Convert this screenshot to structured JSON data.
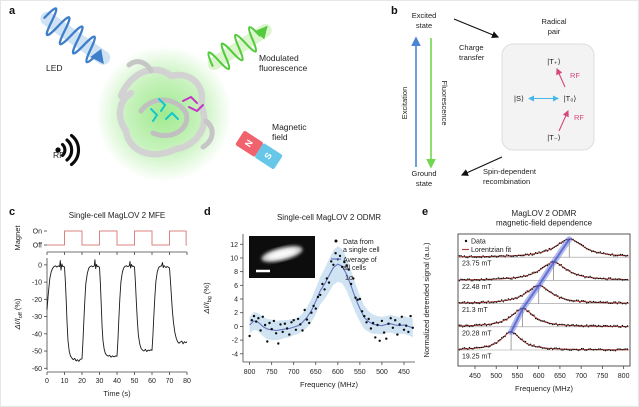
{
  "figure": {
    "panel_letters": {
      "a": "a",
      "b": "b",
      "c": "c",
      "d": "d",
      "e": "e"
    },
    "panel_a": {
      "led": "LED",
      "modulated_line1": "Modulated",
      "modulated_line2": "fluorescence",
      "rf": "RF",
      "magnetic_line1": "Magnetic",
      "magnetic_line2": "field",
      "magnet_n": "N",
      "magnet_s": "S"
    },
    "panel_b": {
      "excited_line1": "Excited",
      "excited_line2": "state",
      "ground_line1": "Ground",
      "ground_line2": "state",
      "excitation": "Excitation",
      "fluorescence": "Fluorescence",
      "charge_line1": "Charge",
      "charge_line2": "transfer",
      "radical_line1": "Radical",
      "radical_line2": "pair",
      "t_plus": "|T₊⟩",
      "s": "|S⟩",
      "t_zero": "|T₀⟩",
      "t_minus": "|T₋⟩",
      "rf_upper": "RF",
      "rf_lower": "RF",
      "spin_line1": "Spin-dependent",
      "spin_line2": "recombination"
    }
  },
  "colors": {
    "magnet_wave": "#d9837f",
    "trace": "#1a1a1a",
    "average_line": "#6674c2",
    "sigma_band": "#cfe3f2",
    "lorentzian_fit": "#b5413c",
    "trend_band": "#6b79d9",
    "trend_core": "#4050c8",
    "guide": "#8a8a8a",
    "axis": "#444444",
    "tick_text": "#222222",
    "magnet_n": "#f0636e",
    "magnet_s": "#66c7e8",
    "led_wave": "#3f7fca",
    "led_ribbon": "#c3dcf2",
    "fluor_wave": "#54cb3e",
    "fluor_ribbon": "#d4f2c2",
    "rf_pink": "#d6477e",
    "st_arrow": "#45b8e8",
    "excitation_arrow": "#4a86d8",
    "fluorescence_arrow": "#6fd84e",
    "glow": "#52d832",
    "box_fill": "#f3f3f3",
    "box_stroke": "#dddddd"
  },
  "chart_data": [
    {
      "panel": "c",
      "type": "line",
      "title": "Single-cell MagLOV 2 MFE",
      "xlabel": "Time (s)",
      "xlim": [
        0,
        80
      ],
      "xticks": [
        0,
        10,
        20,
        30,
        40,
        50,
        60,
        70,
        80
      ],
      "magnet": {
        "label": "Magnet",
        "on_label": "On",
        "off_label": "Off",
        "on_intervals": [
          [
            10,
            20
          ],
          [
            30,
            40
          ],
          [
            50,
            60
          ],
          [
            70,
            79.5
          ]
        ]
      },
      "ylabel": {
        "pre": "ΔI/I",
        "sub": "off",
        "post": " (%)"
      },
      "ylim": [
        -61,
        4
      ],
      "yticks": [
        0,
        -10,
        -20,
        -30,
        -40,
        -50,
        -60
      ],
      "points": [
        [
          0,
          -26
        ],
        [
          0.8,
          -16
        ],
        [
          1.6,
          -8
        ],
        [
          2.4,
          -4
        ],
        [
          3.2,
          -2
        ],
        [
          4,
          -1
        ],
        [
          4.8,
          -0.5
        ],
        [
          5.6,
          -1.2
        ],
        [
          6.4,
          -0.6
        ],
        [
          7.2,
          -1
        ],
        [
          7.6,
          2.5
        ],
        [
          8,
          -3
        ],
        [
          8.5,
          0.5
        ],
        [
          9,
          -1
        ],
        [
          9.5,
          -0.8
        ],
        [
          10,
          -1.2
        ],
        [
          10.5,
          -10
        ],
        [
          11,
          -22
        ],
        [
          11.5,
          -34
        ],
        [
          12,
          -44
        ],
        [
          12.7,
          -50
        ],
        [
          13.4,
          -53
        ],
        [
          14.2,
          -54
        ],
        [
          15,
          -55
        ],
        [
          15.8,
          -54.2
        ],
        [
          16.6,
          -55.8
        ],
        [
          17.4,
          -55
        ],
        [
          18.2,
          -56
        ],
        [
          19,
          -54.8
        ],
        [
          20,
          -54.5
        ],
        [
          20.5,
          -45
        ],
        [
          21,
          -33
        ],
        [
          21.6,
          -21
        ],
        [
          22.2,
          -11
        ],
        [
          23,
          -5
        ],
        [
          23.8,
          -2
        ],
        [
          24.6,
          -1
        ],
        [
          25.4,
          -0.6
        ],
        [
          26.2,
          -1.1
        ],
        [
          27,
          -0.6
        ],
        [
          27.4,
          3
        ],
        [
          27.8,
          -2.2
        ],
        [
          28.3,
          0.3
        ],
        [
          28.8,
          -1
        ],
        [
          29.4,
          -0.8
        ],
        [
          30,
          -1.4
        ],
        [
          30.5,
          -11
        ],
        [
          31,
          -24
        ],
        [
          31.5,
          -36
        ],
        [
          32,
          -44
        ],
        [
          32.7,
          -49
        ],
        [
          33.4,
          -51.5
        ],
        [
          34.2,
          -52.5
        ],
        [
          35,
          -53
        ],
        [
          35.8,
          -52.4
        ],
        [
          36.6,
          -53.6
        ],
        [
          37.4,
          -52.8
        ],
        [
          38.2,
          -53.4
        ],
        [
          39,
          -52.9
        ],
        [
          40,
          -53
        ],
        [
          40.5,
          -44
        ],
        [
          41,
          -32
        ],
        [
          41.6,
          -20
        ],
        [
          42.2,
          -10
        ],
        [
          43,
          -4.5
        ],
        [
          43.8,
          -1.8
        ],
        [
          44.6,
          -0.8
        ],
        [
          45.4,
          -0.5
        ],
        [
          46.2,
          -1
        ],
        [
          47,
          -0.5
        ],
        [
          47.4,
          2
        ],
        [
          47.8,
          -1.8
        ],
        [
          48.3,
          0.2
        ],
        [
          48.8,
          -0.9
        ],
        [
          49.4,
          -0.7
        ],
        [
          50,
          -1.2
        ],
        [
          50.5,
          -10
        ],
        [
          51,
          -21
        ],
        [
          51.6,
          -32
        ],
        [
          52.2,
          -41
        ],
        [
          53,
          -46
        ],
        [
          53.8,
          -48.5
        ],
        [
          54.6,
          -49.5
        ],
        [
          55.4,
          -50
        ],
        [
          56.2,
          -49
        ],
        [
          57,
          -50.3
        ],
        [
          57.8,
          -49.4
        ],
        [
          58.6,
          -49.8
        ],
        [
          59.3,
          -49.2
        ],
        [
          60,
          -49.6
        ],
        [
          60.5,
          -41
        ],
        [
          61,
          -30
        ],
        [
          61.6,
          -19
        ],
        [
          62.2,
          -9.5
        ],
        [
          63,
          -4
        ],
        [
          63.8,
          -1.6
        ],
        [
          64.6,
          -0.9
        ],
        [
          65.4,
          -0.5
        ],
        [
          66,
          1.4
        ],
        [
          66.4,
          -1.6
        ],
        [
          66.9,
          -0.4
        ],
        [
          67.4,
          -1
        ],
        [
          68,
          -1.6
        ],
        [
          68.6,
          -1
        ],
        [
          69.3,
          -1.3
        ],
        [
          70,
          -1.8
        ],
        [
          70.5,
          -9
        ],
        [
          71,
          -17
        ],
        [
          71.6,
          -26
        ],
        [
          72.2,
          -33
        ],
        [
          73,
          -39
        ],
        [
          73.8,
          -42.5
        ],
        [
          74.6,
          -44.5
        ],
        [
          75.4,
          -45.5
        ],
        [
          76.2,
          -44.8
        ],
        [
          77,
          -44.2
        ],
        [
          77.8,
          -45.8
        ],
        [
          78.6,
          -44.6
        ],
        [
          79.3,
          -45.2
        ],
        [
          80,
          -44.6
        ]
      ]
    },
    {
      "panel": "d",
      "type": "scatter",
      "title": "Single-cell MagLOV 2 ODMR",
      "xlabel": "Frequency (MHz)",
      "x_reversed": true,
      "xlim": [
        815,
        425
      ],
      "xticks": [
        800,
        750,
        700,
        650,
        600,
        550,
        500,
        450
      ],
      "ylabel": {
        "pre": "ΔI/I",
        "sub": "bg",
        "post": " (%)"
      },
      "ylim": [
        -5.2,
        13.5
      ],
      "yticks": [
        -4,
        -2,
        0,
        2,
        4,
        6,
        8,
        10,
        12
      ],
      "legend": [
        {
          "marker": "dot",
          "label_line1": "Data from",
          "label_line2": "a single cell"
        },
        {
          "marker": "line",
          "label_line1": "Average of",
          "label_line2": "all cells"
        },
        {
          "marker": "band",
          "label_line1": "1σ",
          "label_line2": ""
        }
      ],
      "average_line": [
        [
          800,
          0.2
        ],
        [
          790,
          0.8
        ],
        [
          780,
          0.6
        ],
        [
          770,
          0.0
        ],
        [
          760,
          -0.4
        ],
        [
          750,
          -0.5
        ],
        [
          740,
          -0.6
        ],
        [
          730,
          -0.5
        ],
        [
          720,
          -0.4
        ],
        [
          710,
          -0.3
        ],
        [
          700,
          -0.1
        ],
        [
          690,
          0.1
        ],
        [
          680,
          0.6
        ],
        [
          670,
          1.3
        ],
        [
          660,
          2.3
        ],
        [
          650,
          3.7
        ],
        [
          640,
          5.2
        ],
        [
          630,
          6.2
        ],
        [
          620,
          7.4
        ],
        [
          610,
          8.6
        ],
        [
          600,
          9.1
        ],
        [
          590,
          8.8
        ],
        [
          580,
          7.6
        ],
        [
          570,
          5.9
        ],
        [
          560,
          4.1
        ],
        [
          550,
          2.6
        ],
        [
          540,
          1.3
        ],
        [
          530,
          0.7
        ],
        [
          520,
          0.3
        ],
        [
          510,
          0.2
        ],
        [
          500,
          0.1
        ],
        [
          490,
          0.3
        ],
        [
          480,
          0.4
        ],
        [
          470,
          0.2
        ],
        [
          460,
          0.1
        ],
        [
          450,
          0.2
        ],
        [
          440,
          0.0
        ],
        [
          430,
          -0.2
        ]
      ],
      "sigma": [
        1.2,
        1.3,
        1.3,
        1.4,
        1.5,
        1.5,
        1.4,
        1.4,
        1.3,
        1.3,
        1.2,
        1.2,
        1.3,
        1.5,
        1.7,
        1.9,
        2.0,
        2.2,
        2.4,
        2.5,
        2.6,
        2.5,
        2.4,
        2.3,
        2.1,
        1.9,
        1.7,
        1.5,
        1.4,
        1.3,
        1.3,
        1.2,
        1.3,
        1.3,
        1.2,
        1.3,
        1.3,
        1.4
      ],
      "scatter": [
        [
          800,
          -1.4
        ],
        [
          795,
          0.9
        ],
        [
          790,
          1.5
        ],
        [
          785,
          0.7
        ],
        [
          780,
          1.2
        ],
        [
          775,
          -0.6
        ],
        [
          770,
          1.4
        ],
        [
          765,
          0.2
        ],
        [
          760,
          -2.2
        ],
        [
          755,
          0.5
        ],
        [
          750,
          -0.4
        ],
        [
          745,
          0.8
        ],
        [
          740,
          -1.0
        ],
        [
          735,
          -2.5
        ],
        [
          730,
          0.3
        ],
        [
          725,
          -0.8
        ],
        [
          720,
          0.4
        ],
        [
          715,
          -0.3
        ],
        [
          710,
          -1.2
        ],
        [
          705,
          0.6
        ],
        [
          700,
          0.9
        ],
        [
          695,
          -0.5
        ],
        [
          690,
          1.1
        ],
        [
          685,
          0.3
        ],
        [
          680,
          -0.6
        ],
        [
          675,
          2.4
        ],
        [
          670,
          1.0
        ],
        [
          665,
          0.5
        ],
        [
          660,
          2.0
        ],
        [
          655,
          3.0
        ],
        [
          650,
          2.6
        ],
        [
          645,
          4.3
        ],
        [
          640,
          4.6
        ],
        [
          635,
          6.2
        ],
        [
          630,
          5.4
        ],
        [
          625,
          7.0
        ],
        [
          620,
          6.4
        ],
        [
          615,
          9.5
        ],
        [
          610,
          9.0
        ],
        [
          605,
          10.7
        ],
        [
          600,
          9.8
        ],
        [
          595,
          10.3
        ],
        [
          590,
          8.7
        ],
        [
          585,
          9.4
        ],
        [
          580,
          8.9
        ],
        [
          575,
          8.3
        ],
        [
          570,
          6.2
        ],
        [
          565,
          7.0
        ],
        [
          560,
          4.2
        ],
        [
          555,
          3.9
        ],
        [
          550,
          4.0
        ],
        [
          545,
          2.2
        ],
        [
          540,
          1.5
        ],
        [
          535,
          0.6
        ],
        [
          530,
          1.1
        ],
        [
          525,
          -0.3
        ],
        [
          520,
          0.5
        ],
        [
          515,
          -1.6
        ],
        [
          510,
          0.2
        ],
        [
          505,
          -2.1
        ],
        [
          500,
          0.8
        ],
        [
          495,
          -0.9
        ],
        [
          490,
          -1.8
        ],
        [
          485,
          0.4
        ],
        [
          480,
          1.2
        ],
        [
          475,
          -0.2
        ],
        [
          470,
          0.9
        ],
        [
          465,
          -1.2
        ],
        [
          460,
          0.3
        ],
        [
          455,
          1.4
        ],
        [
          450,
          -0.5
        ],
        [
          445,
          0.1
        ],
        [
          440,
          -0.8
        ],
        [
          435,
          1.5
        ],
        [
          430,
          -0.2
        ]
      ]
    },
    {
      "panel": "e",
      "type": "line",
      "title_line1": "MagLOV 2 ODMR",
      "title_line2": "magnetic-field dependence",
      "xlabel": "Frequency (MHz)",
      "xlim": [
        410,
        815
      ],
      "xticks": [
        450,
        500,
        550,
        600,
        650,
        700,
        750,
        800
      ],
      "ylabel": "Normalized detrended signal (a.u.)",
      "legend": [
        {
          "label": "Data"
        },
        {
          "label": "Lorentzian fit"
        }
      ],
      "traces": [
        {
          "label": "23.75 mT",
          "center_mhz": 672,
          "hwhm_mhz": 40
        },
        {
          "label": "22.48 mT",
          "center_mhz": 635,
          "hwhm_mhz": 38
        },
        {
          "label": "21.3 mT",
          "center_mhz": 600,
          "hwhm_mhz": 36
        },
        {
          "label": "20.28 mT",
          "center_mhz": 562,
          "hwhm_mhz": 32
        },
        {
          "label": "19.25 mT",
          "center_mhz": 535,
          "hwhm_mhz": 28
        }
      ]
    }
  ]
}
